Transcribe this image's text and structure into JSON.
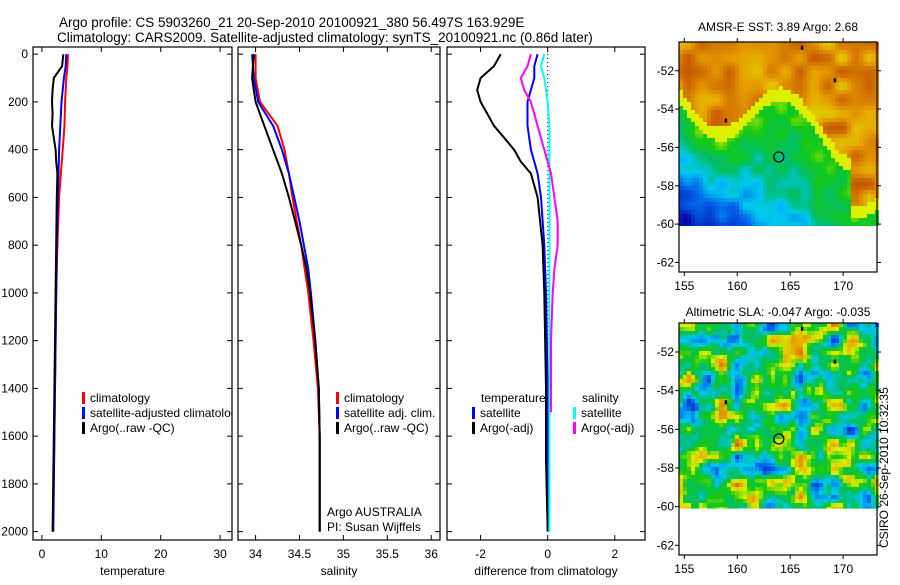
{
  "title_line1": "Argo profile: CS 5903260_21 20-Sep-2010 20100921_380 56.497S 163.929E",
  "title_line2": "Climatology: CARS2009. Satellite-adjusted climatology: synTS_20100921.nc (0.86d later)",
  "footer_stamp": "CSIRO 26-Sep-2010 10:32:35",
  "colors": {
    "climatology": "#ff0000",
    "satellite": "#0000ff",
    "argo": "#000000",
    "sal_sat": "#00ffff",
    "sal_argo": "#ff00ff"
  },
  "chart_data": [
    {
      "type": "line",
      "xlabel": "temperature",
      "xlim": [
        -1.5,
        32
      ],
      "ylim": [
        2035,
        -30
      ],
      "xticks": [
        "0",
        "10",
        "20",
        "30"
      ],
      "xtick_values": [
        0,
        10,
        20,
        30
      ],
      "yticks": [
        "0",
        "200",
        "400",
        "600",
        "800",
        "1000",
        "1200",
        "1400",
        "1600",
        "1800",
        "2000"
      ],
      "ytick_values": [
        0,
        200,
        400,
        600,
        800,
        1000,
        1200,
        1400,
        1600,
        1800,
        2000
      ],
      "legend": [
        "climatology",
        "satellite-adjusted climatology",
        "Argo(..raw -QC)"
      ],
      "series": [
        {
          "name": "climatology",
          "color": "climatology",
          "depth": [
            0,
            50,
            100,
            200,
            300,
            400,
            500,
            600,
            800,
            1000,
            1400,
            1800,
            2000
          ],
          "values": [
            4.4,
            4.3,
            4.1,
            3.9,
            3.8,
            3.5,
            3.2,
            2.9,
            2.6,
            2.4,
            2.2,
            2.0,
            1.9
          ]
        },
        {
          "name": "satellite-adjusted climatology",
          "color": "satellite",
          "depth": [
            0,
            50,
            100,
            200,
            300,
            400,
            500,
            600,
            800,
            1000,
            1400,
            1800,
            2000
          ],
          "values": [
            4.1,
            4.0,
            3.7,
            3.3,
            3.1,
            2.9,
            2.8,
            2.7,
            2.5,
            2.4,
            2.2,
            2.0,
            1.9
          ]
        },
        {
          "name": "Argo(..raw -QC)",
          "color": "argo",
          "depth": [
            0,
            50,
            100,
            150,
            200,
            250,
            300,
            350,
            400,
            450,
            500,
            600,
            800,
            1000,
            1400,
            1800,
            2000
          ],
          "values": [
            3.6,
            3.4,
            2.0,
            1.8,
            1.7,
            1.8,
            1.7,
            2.0,
            2.3,
            2.4,
            2.6,
            2.5,
            2.4,
            2.3,
            2.1,
            1.9,
            1.8
          ]
        }
      ]
    },
    {
      "type": "line",
      "xlabel": "salinity",
      "xlim": [
        33.8,
        36.1
      ],
      "ylim": [
        2035,
        -30
      ],
      "xticks": [
        "34",
        "34.5",
        "35",
        "35.5",
        "36"
      ],
      "xtick_values": [
        34,
        34.5,
        35,
        35.5,
        36
      ],
      "legend": [
        "climatology",
        "satellite adj. clim.",
        "Argo(..raw -QC)"
      ],
      "annotation": [
        "Argo AUSTRALIA",
        "PI: Susan Wijffels"
      ],
      "series": [
        {
          "name": "climatology",
          "color": "climatology",
          "depth": [
            0,
            100,
            200,
            300,
            400,
            500,
            600,
            700,
            800,
            900,
            1000,
            1200,
            1400,
            1600,
            1800,
            2000
          ],
          "values": [
            34.0,
            34.0,
            34.05,
            34.25,
            34.33,
            34.38,
            34.42,
            34.47,
            34.52,
            34.56,
            34.6,
            34.66,
            34.71,
            34.73,
            34.73,
            34.73
          ]
        },
        {
          "name": "satellite adj. clim.",
          "color": "satellite",
          "depth": [
            0,
            100,
            200,
            300,
            400,
            500,
            600,
            700,
            800,
            900,
            1000,
            1200,
            1400,
            1600,
            1800,
            2000
          ],
          "values": [
            33.96,
            33.98,
            34.03,
            34.2,
            34.3,
            34.38,
            34.44,
            34.5,
            34.55,
            34.6,
            34.63,
            34.68,
            34.72,
            34.73,
            34.73,
            34.73
          ]
        },
        {
          "name": "Argo(..raw -QC)",
          "color": "argo",
          "depth": [
            0,
            100,
            150,
            200,
            300,
            400,
            500,
            600,
            700,
            800,
            900,
            1000,
            1200,
            1400,
            1600,
            1800,
            2000
          ],
          "values": [
            33.98,
            33.96,
            33.98,
            34.0,
            34.1,
            34.2,
            34.3,
            34.38,
            34.45,
            34.52,
            34.58,
            34.62,
            34.68,
            34.72,
            34.73,
            34.73,
            34.73
          ]
        }
      ]
    },
    {
      "type": "line",
      "xlabel": "difference from climatology",
      "xlim": [
        -3,
        2.9
      ],
      "ylim": [
        2035,
        -30
      ],
      "xticks": [
        "-2",
        "0",
        "2"
      ],
      "xtick_values": [
        -2,
        0,
        2
      ],
      "legend_temperature": {
        "heading": "temperature",
        "items": [
          "satellite",
          "Argo(-adj)"
        ]
      },
      "legend_salinity": {
        "heading": "salinity",
        "items": [
          "satellite",
          "Argo(-adj)"
        ]
      },
      "series": [
        {
          "name": "temperature satellite",
          "color": "satellite",
          "depth": [
            0,
            50,
            100,
            200,
            300,
            400,
            500,
            600,
            800,
            1000,
            1400,
            2000
          ],
          "values": [
            -0.3,
            -0.4,
            -0.4,
            -0.6,
            -0.6,
            -0.5,
            -0.3,
            -0.2,
            -0.1,
            -0.05,
            0,
            0
          ]
        },
        {
          "name": "temperature Argo(-adj)",
          "color": "argo",
          "depth": [
            0,
            50,
            100,
            150,
            200,
            250,
            300,
            350,
            400,
            450,
            500,
            600,
            800,
            1000,
            1400,
            1700,
            2000
          ],
          "values": [
            -1.4,
            -1.6,
            -2.0,
            -2.1,
            -2.0,
            -1.8,
            -1.6,
            -1.3,
            -1.0,
            -0.8,
            -0.5,
            -0.3,
            -0.15,
            -0.1,
            -0.05,
            -0.05,
            0
          ]
        },
        {
          "name": "salinity satellite",
          "color": "sal_sat",
          "depth": [
            0,
            50,
            100,
            200,
            300,
            400,
            600,
            800,
            1000,
            1400,
            2000
          ],
          "values": [
            -0.1,
            -0.2,
            -0.1,
            0,
            0.05,
            0.05,
            0.05,
            0.05,
            0.05,
            0.05,
            0.05
          ]
        },
        {
          "name": "salinity Argo(-adj)",
          "color": "sal_argo",
          "depth": [
            0,
            50,
            100,
            150,
            200,
            300,
            400,
            500,
            600,
            700,
            800,
            900,
            1000,
            1200,
            1400,
            1500
          ],
          "values": [
            -0.5,
            -0.6,
            -0.8,
            -0.7,
            -0.5,
            -0.3,
            -0.1,
            0.1,
            0.2,
            0.3,
            0.3,
            0.2,
            0.15,
            0.1,
            0.1,
            0.1
          ]
        }
      ]
    },
    {
      "type": "heatmap",
      "title": "AMSR-E SST: 3.89 Argo: 2.68",
      "xticks": [
        "155",
        "160",
        "165",
        "170"
      ],
      "xtick_values": [
        155,
        160,
        165,
        170
      ],
      "yticks": [
        "-52",
        "-54",
        "-56",
        "-58",
        "-60",
        "-62"
      ],
      "ytick_values": [
        -52,
        -54,
        -56,
        -58,
        -60,
        -62
      ],
      "xlim": [
        154.5,
        173.2
      ],
      "ylim": [
        -62.5,
        -50.5
      ],
      "data_south_limit": -60.1,
      "float_position": {
        "lon": 163.929,
        "lat": -56.497
      }
    },
    {
      "type": "heatmap",
      "title": "Altimetric SLA: -0.047 Argo: -0.035",
      "xticks": [
        "155",
        "160",
        "165",
        "170"
      ],
      "xtick_values": [
        155,
        160,
        165,
        170
      ],
      "yticks": [
        "-52",
        "-54",
        "-56",
        "-58",
        "-60",
        "-62"
      ],
      "ytick_values": [
        -52,
        -54,
        -56,
        -58,
        -60,
        -62
      ],
      "xlim": [
        154.5,
        173.2
      ],
      "ylim": [
        -62.5,
        -50.5
      ],
      "data_south_limit": -60.1,
      "float_position": {
        "lon": 163.929,
        "lat": -56.497
      }
    }
  ]
}
